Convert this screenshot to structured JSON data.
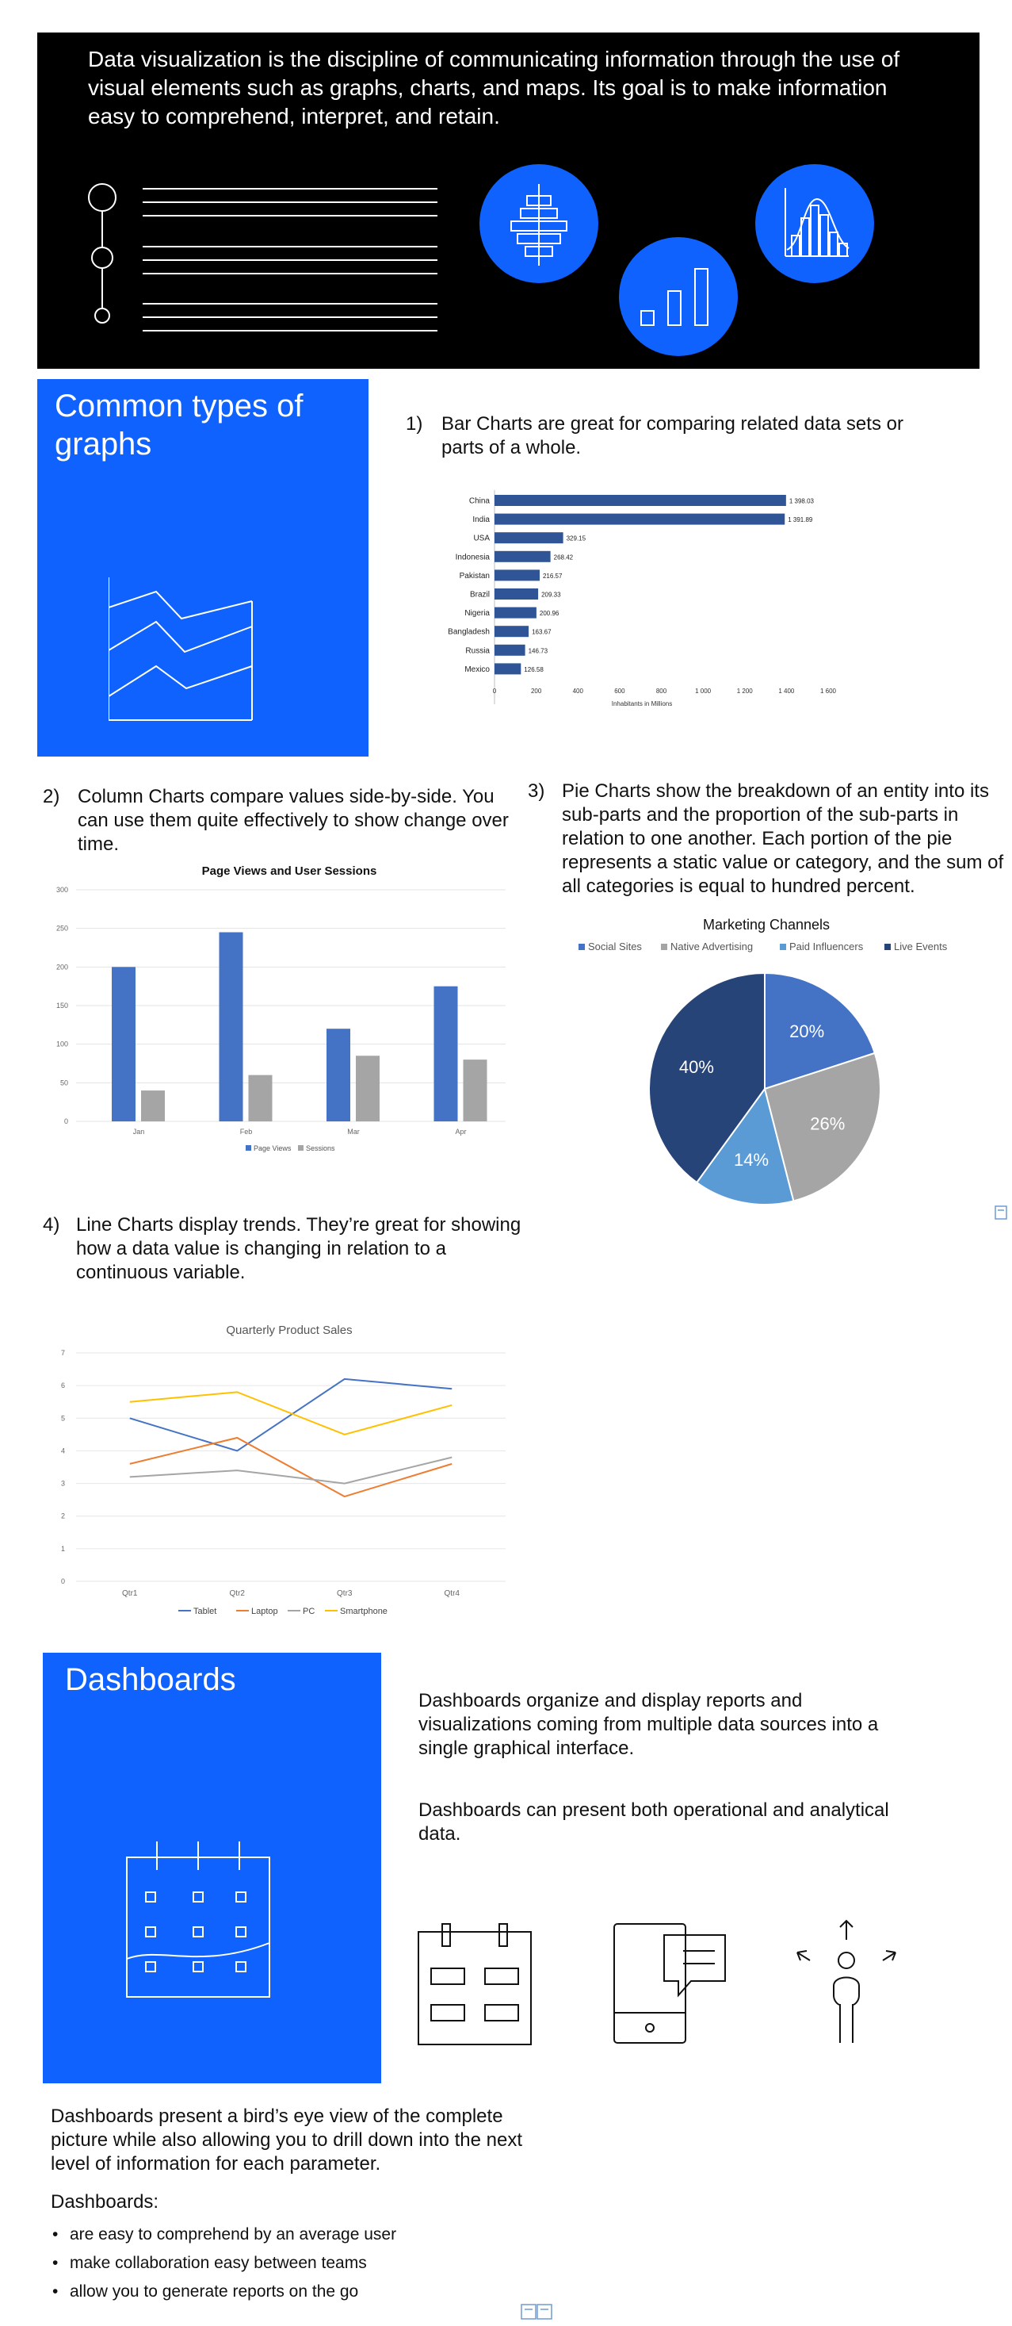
{
  "hero": {
    "text": "Data visualization is the discipline of communicating information through the use of visual elements such as graphs, charts, and maps. Its goal is to make information easy to comprehend, interpret, and retain."
  },
  "graphs_section": {
    "title": "Common types of graphs"
  },
  "items": [
    {
      "num": "1)",
      "text": "Bar Charts are great for comparing related data sets or parts of a whole."
    },
    {
      "num": "2)",
      "text": "Column Charts compare values side-by-side. You can use them quite effectively to show change over time."
    },
    {
      "num": "3)",
      "text": "Pie Charts show the breakdown of an entity into its sub-parts and the proportion of the sub-parts in relation to one another. Each portion of the pie represents a static value or category, and the sum of all categories is equal to hundred percent."
    },
    {
      "num": "4)",
      "text": "Line Charts display trends. They’re great for showing how a data value is changing in relation to a continuous variable."
    }
  ],
  "dashboards_section": {
    "title": "Dashboards",
    "para1": "Dashboards organize and display reports and visualizations coming from multiple data sources into a single graphical interface.",
    "para2": "Dashboards can present both operational and analytical data.",
    "para3": "Dashboards present a bird’s eye view of the complete picture while also allowing you to drill down into the next level of information for each parameter.",
    "list_heading": "Dashboards:",
    "bullets": [
      "are easy to comprehend by an average user",
      "make collaboration easy between teams",
      "allow you to generate reports on the go"
    ]
  },
  "icons": {
    "hero_timeline": "timeline-icon",
    "hero_pyramid": "population-pyramid-icon",
    "hero_bar": "bar-chart-icon",
    "hero_distribution": "distribution-chart-icon",
    "graph_area": "area-chart-icon",
    "calendar": "calendar-icon",
    "dashboard_board": "dashboard-board-icon",
    "mobile_chat": "mobile-chat-icon",
    "person_directions": "person-directions-icon",
    "book": "book-icon"
  },
  "colors": {
    "blue_panel": "#0f62fe",
    "hero_bg": "#000000",
    "bar_fill": "#2f5597",
    "col_page_views": "#4472c4",
    "col_sessions": "#a5a5a5",
    "pie_social": "#4472c4",
    "pie_native": "#a5a5a5",
    "pie_paid": "#5b9bd5",
    "pie_live": "#264478",
    "line_tablet": "#4472c4",
    "line_laptop": "#ed7d31",
    "line_pc": "#a5a5a5",
    "line_smartphone": "#ffc000"
  },
  "chart_data": [
    {
      "type": "bar",
      "orientation": "horizontal",
      "categories": [
        "China",
        "India",
        "USA",
        "Indonesia",
        "Pakistan",
        "Brazil",
        "Nigeria",
        "Bangladesh",
        "Russia",
        "Mexico"
      ],
      "values": [
        1398.03,
        1391.89,
        329.15,
        268.42,
        216.57,
        209.33,
        200.96,
        163.67,
        146.73,
        126.58
      ],
      "value_labels": [
        "1 398.03",
        "1 391.89",
        "329.15",
        "268.42",
        "216.57",
        "209.33",
        "200.96",
        "163.67",
        "146.73",
        "126.58"
      ],
      "xticks": [
        "0",
        "200",
        "400",
        "600",
        "800",
        "1 000",
        "1 200",
        "1 400",
        "1 600"
      ],
      "xlim": [
        0,
        1600
      ],
      "title": "",
      "xlabel": "Inhabitants in Millions",
      "ylabel": ""
    },
    {
      "type": "bar",
      "orientation": "vertical",
      "title": "Page Views and User Sessions",
      "categories": [
        "Jan",
        "Feb",
        "Mar",
        "Apr"
      ],
      "series": [
        {
          "name": "Page Views",
          "values": [
            200,
            245,
            120,
            175
          ]
        },
        {
          "name": "Sessions",
          "values": [
            40,
            60,
            85,
            80
          ]
        }
      ],
      "yticks": [
        "0",
        "50",
        "100",
        "150",
        "200",
        "250",
        "300"
      ],
      "ylim": [
        0,
        300
      ],
      "grid": true,
      "legend": "bottom"
    },
    {
      "type": "pie",
      "title": "Marketing Channels",
      "slices": [
        {
          "name": "Social Sites",
          "value": 20,
          "label": "20%"
        },
        {
          "name": "Native Advertising",
          "value": 26,
          "label": "26%"
        },
        {
          "name": "Paid Influencers",
          "value": 14,
          "label": "14%"
        },
        {
          "name": "Live Events",
          "value": 40,
          "label": "40%"
        }
      ],
      "legend": "top"
    },
    {
      "type": "line",
      "title": "Quarterly Product Sales",
      "categories": [
        "Qtr1",
        "Qtr2",
        "Qtr3",
        "Qtr4"
      ],
      "series": [
        {
          "name": "Tablet",
          "values": [
            5,
            4,
            6.2,
            5.9
          ]
        },
        {
          "name": "Laptop",
          "values": [
            3.6,
            4.4,
            2.6,
            3.6
          ]
        },
        {
          "name": "PC",
          "values": [
            3.2,
            3.4,
            3,
            3.8
          ]
        },
        {
          "name": "Smartphone",
          "values": [
            5.5,
            5.8,
            4.5,
            5.4
          ]
        }
      ],
      "yticks": [
        "0",
        "1",
        "2",
        "3",
        "4",
        "5",
        "6",
        "7"
      ],
      "ylim": [
        0,
        7
      ],
      "grid": true,
      "legend": "bottom"
    }
  ]
}
